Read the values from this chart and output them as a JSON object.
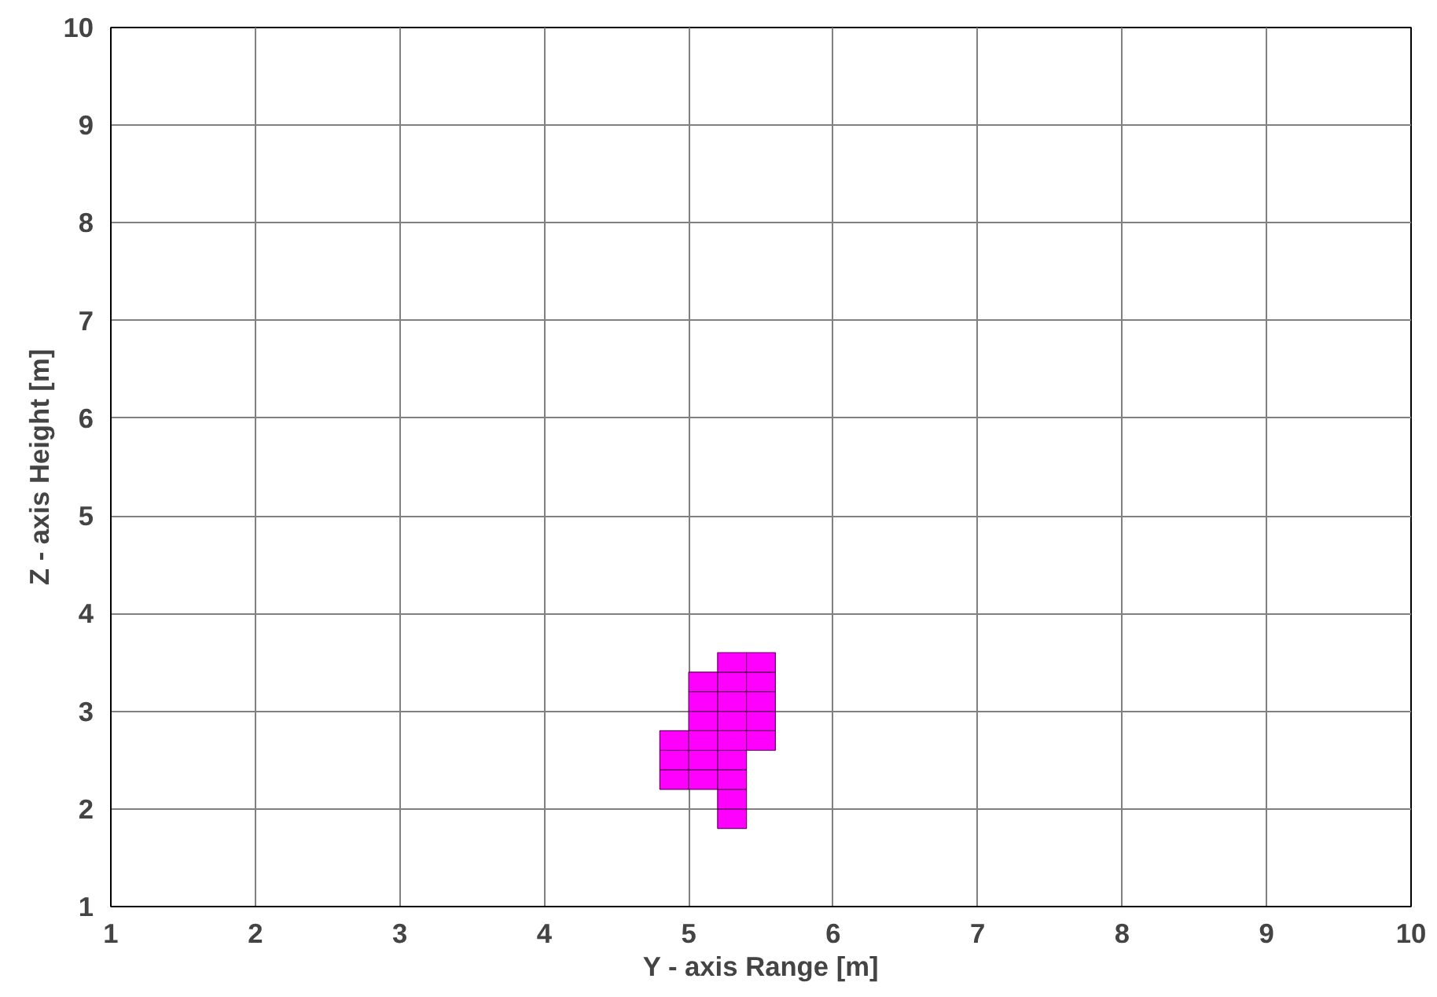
{
  "chart_data": {
    "type": "scatter",
    "xlabel": "Y - axis Range [m]",
    "ylabel": "Z - axis Height [m]",
    "marker": "square",
    "grid": true,
    "xlim": [
      1,
      10
    ],
    "ylim": [
      1,
      10
    ],
    "xticks": [
      1,
      2,
      3,
      4,
      5,
      6,
      7,
      8,
      9,
      10
    ],
    "yticks": [
      1,
      2,
      3,
      4,
      5,
      6,
      7,
      8,
      9,
      10
    ],
    "series": [
      {
        "color": "#ff00ff",
        "x": [
          4.9,
          4.9,
          4.9,
          5.1,
          5.1,
          5.1,
          5.1,
          5.1,
          5.1,
          5.3,
          5.3,
          5.3,
          5.3,
          5.3,
          5.3,
          5.3,
          5.3,
          5.3,
          5.5,
          5.5,
          5.5,
          5.5,
          5.5
        ],
        "values": [
          2.3,
          2.5,
          2.7,
          2.3,
          2.5,
          2.7,
          2.9,
          3.1,
          3.3,
          1.9,
          2.1,
          2.3,
          2.5,
          2.7,
          2.9,
          3.1,
          3.3,
          3.5,
          2.7,
          2.9,
          3.1,
          3.3,
          3.5
        ]
      }
    ]
  }
}
